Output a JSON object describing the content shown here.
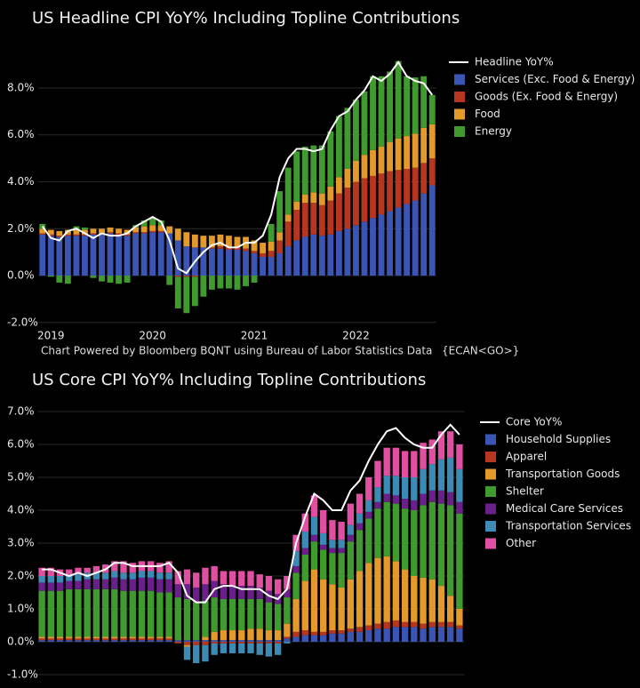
{
  "chart_data": [
    {
      "type": "bar",
      "stacked": true,
      "title": "US Headline CPI YoY% Including Topline Contributions",
      "source": "Chart Powered by Bloomberg BQNT using Bureau of Labor Statistics Data",
      "source_code": "{ECAN<GO>}",
      "categories": [
        null,
        "2019",
        null,
        null,
        null,
        null,
        null,
        null,
        null,
        null,
        null,
        null,
        null,
        "2020",
        null,
        null,
        null,
        null,
        null,
        null,
        null,
        null,
        null,
        null,
        null,
        "2021",
        null,
        null,
        null,
        null,
        null,
        null,
        null,
        null,
        null,
        null,
        null,
        "2022",
        null,
        null,
        null,
        null,
        null,
        null,
        null,
        null,
        null
      ],
      "line": {
        "name": "Headline YoY%",
        "color": "#ffffff",
        "values": [
          2.1,
          1.6,
          1.5,
          1.9,
          2.0,
          1.8,
          1.6,
          1.8,
          1.7,
          1.7,
          1.8,
          2.1,
          2.3,
          2.5,
          2.3,
          1.5,
          0.3,
          0.1,
          0.6,
          1.0,
          1.3,
          1.4,
          1.2,
          1.2,
          1.4,
          1.4,
          1.7,
          2.6,
          4.2,
          5.0,
          5.4,
          5.4,
          5.3,
          5.4,
          6.2,
          6.8,
          7.0,
          7.5,
          7.9,
          8.5,
          8.3,
          8.6,
          9.1,
          8.5,
          8.3,
          8.2,
          7.7
        ]
      },
      "series": [
        {
          "name": "Services (Exc. Food & Energy)",
          "color": "#3b55b5",
          "values": [
            1.75,
            1.7,
            1.65,
            1.7,
            1.7,
            1.7,
            1.75,
            1.75,
            1.8,
            1.75,
            1.7,
            1.8,
            1.8,
            1.85,
            1.85,
            1.8,
            1.5,
            1.25,
            1.2,
            1.2,
            1.15,
            1.15,
            1.1,
            1.1,
            1.05,
            0.95,
            0.8,
            0.8,
            0.95,
            1.25,
            1.5,
            1.65,
            1.75,
            1.7,
            1.75,
            1.9,
            2.0,
            2.15,
            2.3,
            2.45,
            2.6,
            2.75,
            2.9,
            3.05,
            3.2,
            3.5,
            3.85
          ]
        },
        {
          "name": "Goods (Ex. Food & Energy)",
          "color": "#b8361f",
          "values": [
            0.05,
            0.05,
            0.05,
            0.05,
            0.05,
            0.05,
            0.05,
            0.05,
            0.05,
            0.05,
            0.05,
            0.05,
            0.05,
            0.05,
            0.05,
            0.0,
            -0.05,
            -0.05,
            -0.05,
            0.0,
            0.05,
            0.1,
            0.1,
            0.1,
            0.1,
            0.1,
            0.15,
            0.25,
            0.55,
            1.05,
            1.3,
            1.45,
            1.35,
            1.3,
            1.45,
            1.6,
            1.75,
            1.85,
            1.85,
            1.8,
            1.75,
            1.7,
            1.6,
            1.5,
            1.4,
            1.3,
            1.15
          ]
        },
        {
          "name": "Food",
          "color": "#e39a2b",
          "values": [
            0.2,
            0.2,
            0.2,
            0.2,
            0.2,
            0.2,
            0.2,
            0.2,
            0.2,
            0.2,
            0.2,
            0.2,
            0.25,
            0.25,
            0.25,
            0.3,
            0.5,
            0.6,
            0.55,
            0.5,
            0.5,
            0.5,
            0.5,
            0.45,
            0.5,
            0.45,
            0.45,
            0.4,
            0.35,
            0.3,
            0.35,
            0.35,
            0.45,
            0.5,
            0.6,
            0.7,
            0.8,
            0.9,
            1.0,
            1.1,
            1.15,
            1.25,
            1.35,
            1.4,
            1.45,
            1.5,
            1.45
          ]
        },
        {
          "name": "Energy",
          "color": "#409b2e",
          "values": [
            0.2,
            -0.05,
            -0.3,
            -0.35,
            0.15,
            0.1,
            -0.1,
            -0.25,
            -0.3,
            -0.35,
            -0.3,
            0.1,
            0.25,
            0.3,
            0.2,
            -0.4,
            -1.35,
            -1.55,
            -1.25,
            -0.9,
            -0.6,
            -0.55,
            -0.55,
            -0.6,
            -0.45,
            -0.3,
            0.0,
            0.75,
            1.75,
            2.0,
            2.15,
            2.05,
            2.0,
            2.05,
            2.35,
            2.6,
            2.6,
            2.6,
            2.7,
            3.15,
            3.0,
            3.0,
            3.3,
            2.55,
            2.4,
            2.2,
            1.25
          ]
        }
      ],
      "ylim": [
        -2.3,
        9.5
      ],
      "yticks": [
        {
          "value": -2,
          "label": "-2.0%"
        },
        {
          "value": 0,
          "label": "0.0%"
        },
        {
          "value": 2,
          "label": "2.0%"
        },
        {
          "value": 4,
          "label": "4.0%"
        },
        {
          "value": 6,
          "label": "6.0%"
        },
        {
          "value": 8,
          "label": "8.0%"
        }
      ],
      "grid": true
    },
    {
      "type": "bar",
      "stacked": true,
      "title": "US Core CPI YoY% Including Topline Contributions",
      "line": {
        "name": "Core YoY%",
        "color": "#ffffff",
        "values": [
          2.2,
          2.2,
          2.1,
          2.0,
          2.1,
          2.0,
          2.1,
          2.2,
          2.4,
          2.4,
          2.3,
          2.3,
          2.3,
          2.3,
          2.4,
          2.1,
          1.4,
          1.2,
          1.2,
          1.6,
          1.7,
          1.7,
          1.6,
          1.6,
          1.6,
          1.4,
          1.3,
          1.6,
          3.0,
          3.8,
          4.5,
          4.3,
          4.0,
          4.0,
          4.6,
          4.9,
          5.5,
          6.0,
          6.4,
          6.5,
          6.2,
          6.0,
          5.9,
          5.9,
          6.3,
          6.6,
          6.3
        ]
      },
      "series": [
        {
          "name": "Household Supplies",
          "color": "#3b55b5",
          "values": [
            0.05,
            0.05,
            0.05,
            0.05,
            0.05,
            0.05,
            0.05,
            0.05,
            0.05,
            0.05,
            0.05,
            0.05,
            0.05,
            0.05,
            0.05,
            0.05,
            0.05,
            0.05,
            0.05,
            0.05,
            0.05,
            0.05,
            0.05,
            0.05,
            0.05,
            0.05,
            0.05,
            0.1,
            0.15,
            0.2,
            0.2,
            0.2,
            0.25,
            0.25,
            0.3,
            0.3,
            0.35,
            0.4,
            0.4,
            0.45,
            0.45,
            0.45,
            0.4,
            0.45,
            0.45,
            0.45,
            0.4
          ]
        },
        {
          "name": "Apparel",
          "color": "#b8361f",
          "values": [
            0.05,
            0.05,
            0.05,
            0.05,
            0.05,
            0.05,
            0.05,
            0.05,
            0.05,
            0.05,
            0.05,
            0.05,
            0.05,
            0.05,
            0.05,
            -0.05,
            -0.1,
            -0.1,
            -0.1,
            -0.05,
            -0.05,
            -0.05,
            -0.05,
            -0.05,
            -0.05,
            -0.05,
            -0.05,
            0.05,
            0.15,
            0.15,
            0.1,
            0.1,
            0.1,
            0.1,
            0.1,
            0.15,
            0.15,
            0.15,
            0.2,
            0.2,
            0.15,
            0.15,
            0.15,
            0.15,
            0.15,
            0.15,
            0.1
          ]
        },
        {
          "name": "Transportation Goods",
          "color": "#e39a2b",
          "values": [
            0.05,
            0.05,
            0.05,
            0.05,
            0.05,
            0.05,
            0.05,
            0.05,
            0.05,
            0.05,
            0.05,
            0.05,
            0.05,
            0.05,
            0.05,
            0.0,
            -0.05,
            0.0,
            0.1,
            0.25,
            0.3,
            0.3,
            0.3,
            0.35,
            0.35,
            0.3,
            0.3,
            0.4,
            1.0,
            1.5,
            1.9,
            1.6,
            1.4,
            1.3,
            1.5,
            1.7,
            1.9,
            2.0,
            2.0,
            1.8,
            1.6,
            1.4,
            1.4,
            1.3,
            1.1,
            0.8,
            0.5
          ]
        },
        {
          "name": "Shelter",
          "color": "#409b2e",
          "values": [
            1.4,
            1.4,
            1.4,
            1.45,
            1.45,
            1.45,
            1.45,
            1.45,
            1.45,
            1.4,
            1.4,
            1.4,
            1.4,
            1.35,
            1.35,
            1.3,
            1.25,
            1.15,
            1.1,
            1.05,
            0.95,
            0.95,
            0.95,
            0.9,
            0.9,
            0.85,
            0.8,
            0.8,
            0.8,
            0.8,
            0.85,
            0.9,
            0.95,
            1.05,
            1.15,
            1.25,
            1.35,
            1.5,
            1.65,
            1.75,
            1.85,
            2.0,
            2.2,
            2.35,
            2.5,
            2.75,
            2.9
          ]
        },
        {
          "name": "Medical Care Services",
          "color": "#6b1f8b",
          "values": [
            0.25,
            0.25,
            0.25,
            0.25,
            0.25,
            0.3,
            0.3,
            0.3,
            0.35,
            0.35,
            0.35,
            0.4,
            0.4,
            0.4,
            0.4,
            0.4,
            0.45,
            0.45,
            0.5,
            0.5,
            0.45,
            0.4,
            0.4,
            0.4,
            0.35,
            0.35,
            0.3,
            0.25,
            0.2,
            0.2,
            0.2,
            0.15,
            0.15,
            0.15,
            0.2,
            0.2,
            0.2,
            0.2,
            0.25,
            0.25,
            0.3,
            0.3,
            0.35,
            0.35,
            0.4,
            0.4,
            0.35
          ]
        },
        {
          "name": "Transportation Services",
          "color": "#3b8bb5",
          "values": [
            0.2,
            0.2,
            0.2,
            0.2,
            0.2,
            0.2,
            0.2,
            0.2,
            0.2,
            0.2,
            0.2,
            0.2,
            0.2,
            0.2,
            0.2,
            0.0,
            -0.4,
            -0.55,
            -0.5,
            -0.35,
            -0.3,
            -0.3,
            -0.3,
            -0.3,
            -0.35,
            -0.4,
            -0.35,
            -0.05,
            0.45,
            0.5,
            0.55,
            0.35,
            0.25,
            0.25,
            0.3,
            0.3,
            0.35,
            0.45,
            0.55,
            0.6,
            0.65,
            0.7,
            0.75,
            0.8,
            0.95,
            1.05,
            1.0
          ]
        },
        {
          "name": "Other",
          "color": "#e04fa1",
          "values": [
            0.25,
            0.25,
            0.2,
            0.15,
            0.2,
            0.15,
            0.2,
            0.25,
            0.3,
            0.35,
            0.3,
            0.3,
            0.3,
            0.3,
            0.35,
            0.4,
            0.45,
            0.45,
            0.5,
            0.45,
            0.4,
            0.45,
            0.45,
            0.45,
            0.4,
            0.45,
            0.45,
            0.4,
            0.5,
            0.55,
            0.65,
            0.7,
            0.6,
            0.55,
            0.65,
            0.6,
            0.7,
            0.8,
            0.85,
            0.85,
            0.8,
            0.8,
            0.8,
            0.75,
            0.85,
            0.8,
            0.75
          ]
        }
      ],
      "ylim": [
        -1.1,
        7.3
      ],
      "yticks": [
        {
          "value": -1,
          "label": "-1.0%"
        },
        {
          "value": 0,
          "label": "0.0%"
        },
        {
          "value": 1,
          "label": "1.0%"
        },
        {
          "value": 2,
          "label": "2.0%"
        },
        {
          "value": 3,
          "label": "3.0%"
        },
        {
          "value": 4,
          "label": "4.0%"
        },
        {
          "value": 5,
          "label": "5.0%"
        },
        {
          "value": 6,
          "label": "6.0%"
        },
        {
          "value": 7,
          "label": "7.0%"
        }
      ],
      "grid": true
    }
  ]
}
